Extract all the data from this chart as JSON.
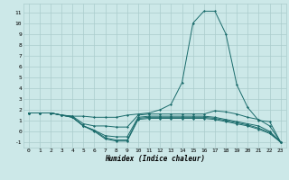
{
  "xlabel": "Humidex (Indice chaleur)",
  "xlim": [
    -0.5,
    23.5
  ],
  "ylim": [
    -1.5,
    11.8
  ],
  "bg_color": "#cce8e8",
  "grid_color": "#aacccc",
  "line_color": "#1a6b6b",
  "xticks": [
    0,
    1,
    2,
    3,
    4,
    5,
    6,
    7,
    8,
    9,
    10,
    11,
    12,
    13,
    14,
    15,
    16,
    17,
    18,
    19,
    20,
    21,
    22,
    23
  ],
  "yticks": [
    -1,
    0,
    1,
    2,
    3,
    4,
    5,
    6,
    7,
    8,
    9,
    10,
    11
  ],
  "lines": [
    [
      1.7,
      1.7,
      1.7,
      1.5,
      1.4,
      1.4,
      1.3,
      1.3,
      1.3,
      1.5,
      1.6,
      1.7,
      2.0,
      2.5,
      4.5,
      10.0,
      11.1,
      11.1,
      9.0,
      4.3,
      2.2,
      1.0,
      0.9,
      -1.0
    ],
    [
      1.7,
      1.7,
      1.7,
      1.5,
      1.4,
      0.7,
      0.5,
      0.5,
      0.4,
      0.4,
      1.5,
      1.6,
      1.6,
      1.6,
      1.6,
      1.6,
      1.6,
      1.9,
      1.8,
      1.6,
      1.3,
      1.1,
      0.5,
      -1.0
    ],
    [
      1.7,
      1.7,
      1.7,
      1.5,
      1.3,
      0.5,
      0.1,
      -0.4,
      -0.5,
      -0.5,
      1.3,
      1.4,
      1.4,
      1.4,
      1.4,
      1.4,
      1.4,
      1.3,
      1.1,
      0.9,
      0.7,
      0.5,
      0.0,
      -1.0
    ],
    [
      1.7,
      1.7,
      1.7,
      1.5,
      1.3,
      0.5,
      0.1,
      -0.6,
      -0.8,
      -0.8,
      1.2,
      1.3,
      1.3,
      1.3,
      1.3,
      1.3,
      1.3,
      1.2,
      1.0,
      0.8,
      0.6,
      0.3,
      -0.1,
      -1.0
    ],
    [
      1.7,
      1.7,
      1.7,
      1.5,
      1.3,
      0.5,
      0.0,
      -0.7,
      -0.9,
      -0.9,
      1.1,
      1.2,
      1.2,
      1.2,
      1.2,
      1.2,
      1.2,
      1.1,
      0.9,
      0.7,
      0.5,
      0.2,
      -0.2,
      -1.0
    ]
  ]
}
